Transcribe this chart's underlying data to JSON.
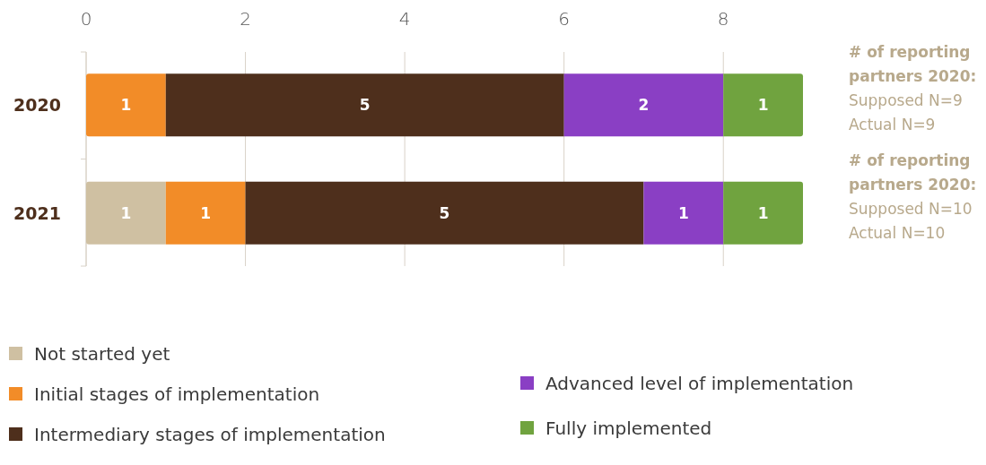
{
  "chart_data": {
    "type": "bar",
    "orientation": "horizontal",
    "stacked": true,
    "categories": [
      "2020",
      "2021"
    ],
    "series": [
      {
        "name": "Not started yet",
        "color": "#cfc0a2",
        "values": [
          null,
          1
        ]
      },
      {
        "name": "Initial stages of implementation",
        "color": "#f28c28",
        "values": [
          1,
          1
        ]
      },
      {
        "name": "Intermediary stages of implementation",
        "color": "#4e2f1c",
        "values": [
          5,
          5
        ]
      },
      {
        "name": "Advanced level of implementation",
        "color": "#8a3fc4",
        "values": [
          2,
          1
        ]
      },
      {
        "name": "Fully implemented",
        "color": "#70a33f",
        "values": [
          1,
          1
        ]
      }
    ],
    "xlim": [
      0,
      9
    ],
    "xticks": [
      0,
      2,
      4,
      6,
      8
    ],
    "grid": "x",
    "data_labels": true,
    "legend": "bottom",
    "annotations": [
      "# of reporting partners 2020:",
      "Supposed N=9",
      "Actual N=9",
      "# of reporting partners 2020:",
      "Supposed N=10",
      "Actual N=10"
    ]
  }
}
